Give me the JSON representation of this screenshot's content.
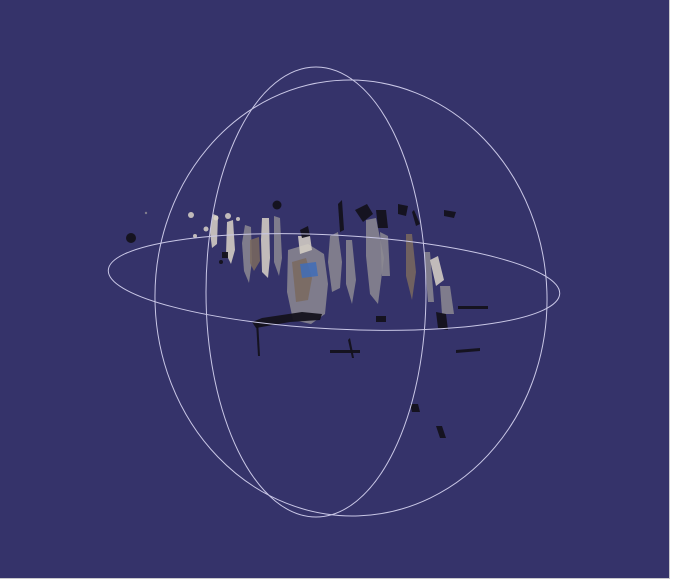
{
  "viewer": {
    "background_color": "#35336a",
    "gizmo_color": "#c9c7e6",
    "cloud_colors": {
      "dark": "#14121c",
      "gray": "#8c8a92",
      "light": "#d9d4c8",
      "brown": "#7a6a5e",
      "blue": "#3f6db8"
    },
    "icons": {
      "rotation_gizmo": "trackball-sphere-icon",
      "point_cloud": "point-cloud-icon"
    }
  }
}
